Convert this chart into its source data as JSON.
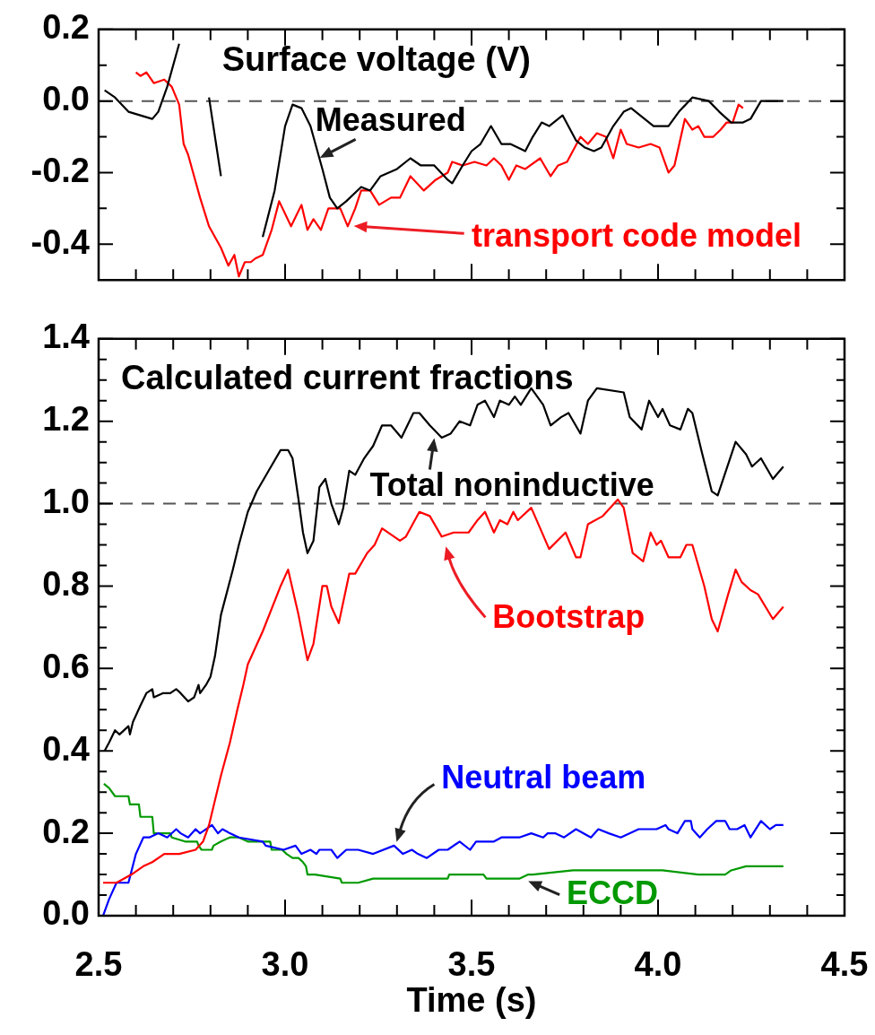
{
  "chart_data": [
    {
      "type": "line",
      "title": "Surface voltage (V)",
      "xlim": [
        2.5,
        4.5
      ],
      "ylim": [
        -0.5,
        0.2
      ],
      "xticks": [
        2.5,
        {
          "value": 2.6,
          "label": null
        },
        {
          "value": 2.7,
          "label": null
        },
        {
          "value": 2.8,
          "label": null
        },
        {
          "value": 2.9,
          "label": null
        },
        3,
        {
          "value": 3.1,
          "label": null
        },
        {
          "value": 3.2,
          "label": null
        },
        {
          "value": 3.3,
          "label": null
        },
        {
          "value": 3.4,
          "label": null
        },
        3.5,
        {
          "value": 3.6,
          "label": null
        },
        {
          "value": 3.7,
          "label": null
        },
        {
          "value": 3.8,
          "label": null
        },
        {
          "value": 3.9,
          "label": null
        },
        4,
        {
          "value": 4.1,
          "label": null
        },
        {
          "value": 4.2,
          "label": null
        },
        {
          "value": 4.3,
          "label": null
        },
        {
          "value": 4.4,
          "label": null
        },
        4.5
      ],
      "yticks": [
        0.2,
        {
          "value": 0.1,
          "label": null
        },
        {
          "value": 0,
          "label": "0.0"
        },
        {
          "value": -0.1,
          "label": null
        },
        -0.2,
        {
          "value": -0.3,
          "label": null
        },
        -0.4
      ],
      "tick_labels": "y",
      "grid": false,
      "legend": false,
      "ref_lines": [
        {
          "axis": "y",
          "value": 0,
          "color": "#555555",
          "line_style": "dashed"
        }
      ],
      "series": [
        {
          "name": "Measured",
          "color": "#000000",
          "x": [
            2.516,
            2.544,
            2.58,
            2.612,
            2.644,
            2.66,
            2.684,
            2.716,
            2.726,
            2.748,
            2.77,
            2.796,
            2.828,
            2.864,
            2.886,
            2.908,
            2.94,
            2.972,
            3.0,
            3.02,
            3.044,
            3.068,
            3.1,
            3.12,
            3.14,
            3.164,
            3.204,
            3.228,
            3.256,
            3.3,
            3.336,
            3.364,
            3.4,
            3.436,
            3.448,
            3.476,
            3.5,
            3.524,
            3.552,
            3.58,
            3.604,
            3.644,
            3.664,
            3.688,
            3.708,
            3.744,
            3.78,
            3.804,
            3.828,
            3.848,
            3.88,
            3.908,
            3.928,
            3.964,
            3.988,
            4.028,
            4.056,
            4.092,
            4.136,
            4.164,
            4.196,
            4.228,
            4.248,
            4.276,
            4.3,
            4.336
          ],
          "values": [
            0.03,
            0.01,
            -0.03,
            -0.04,
            -0.05,
            -0.03,
            0.04,
            0.16,
            null,
            null,
            null,
            0.01,
            -0.21,
            null,
            null,
            null,
            -0.38,
            -0.25,
            -0.07,
            -0.01,
            -0.02,
            -0.07,
            -0.19,
            -0.27,
            -0.3,
            -0.28,
            -0.24,
            -0.25,
            -0.21,
            -0.19,
            -0.16,
            -0.18,
            -0.18,
            -0.22,
            -0.23,
            -0.18,
            -0.14,
            -0.12,
            -0.07,
            -0.12,
            -0.12,
            -0.14,
            -0.1,
            -0.06,
            -0.07,
            -0.04,
            -0.11,
            -0.13,
            -0.14,
            -0.13,
            -0.07,
            -0.03,
            -0.02,
            -0.05,
            -0.07,
            -0.07,
            -0.03,
            0.01,
            0.0,
            -0.03,
            -0.06,
            -0.06,
            -0.05,
            0.0,
            0.0,
            0.0
          ]
        },
        {
          "name": "transport code model",
          "color": "#ff0000",
          "x": [
            2.6,
            2.612,
            2.628,
            2.648,
            2.676,
            2.696,
            2.716,
            2.728,
            2.74,
            2.756,
            2.772,
            2.796,
            2.828,
            2.848,
            2.864,
            2.876,
            2.892,
            2.908,
            2.92,
            2.94,
            2.964,
            2.984,
            3.016,
            3.044,
            3.06,
            3.076,
            3.096,
            3.116,
            3.148,
            3.168,
            3.188,
            3.204,
            3.228,
            3.252,
            3.284,
            3.308,
            3.336,
            3.372,
            3.404,
            3.436,
            3.448,
            3.476,
            3.508,
            3.54,
            3.56,
            3.58,
            3.6,
            3.62,
            3.644,
            3.684,
            3.712,
            3.732,
            3.756,
            3.792,
            3.812,
            3.836,
            3.86,
            3.88,
            3.9,
            3.916,
            3.948,
            3.98,
            4.004,
            4.028,
            4.044,
            4.072,
            4.092,
            4.108,
            4.124,
            4.148,
            4.168,
            4.184,
            4.2,
            4.216,
            4.228
          ],
          "values": [
            0.08,
            0.07,
            0.08,
            0.05,
            0.06,
            0.04,
            -0.01,
            -0.12,
            -0.15,
            -0.21,
            -0.27,
            -0.35,
            -0.41,
            -0.46,
            -0.43,
            -0.49,
            -0.45,
            -0.45,
            -0.44,
            -0.43,
            -0.36,
            -0.28,
            -0.35,
            -0.29,
            -0.36,
            -0.33,
            -0.36,
            -0.3,
            -0.3,
            -0.35,
            -0.3,
            -0.25,
            -0.25,
            -0.29,
            -0.27,
            -0.27,
            -0.21,
            -0.25,
            -0.22,
            -0.2,
            -0.17,
            -0.18,
            -0.17,
            -0.18,
            -0.16,
            -0.18,
            -0.22,
            -0.18,
            -0.19,
            -0.16,
            -0.21,
            -0.18,
            -0.17,
            -0.1,
            -0.12,
            -0.09,
            -0.1,
            -0.16,
            -0.08,
            -0.12,
            -0.13,
            -0.12,
            -0.13,
            -0.2,
            -0.18,
            -0.05,
            -0.08,
            -0.07,
            -0.1,
            -0.1,
            -0.08,
            -0.06,
            -0.06,
            -0.01,
            -0.02
          ]
        }
      ]
    },
    {
      "type": "line",
      "title": "Calculated current fractions",
      "xlabel": "Time (s)",
      "xlim": [
        2.5,
        4.5
      ],
      "ylim": [
        0,
        1.4
      ],
      "xticks": [
        2.5,
        {
          "value": 2.6,
          "label": null
        },
        {
          "value": 2.7,
          "label": null
        },
        {
          "value": 2.8,
          "label": null
        },
        {
          "value": 2.9,
          "label": null
        },
        {
          "value": 3,
          "label": "3.0"
        },
        {
          "value": 3.1,
          "label": null
        },
        {
          "value": 3.2,
          "label": null
        },
        {
          "value": 3.3,
          "label": null
        },
        {
          "value": 3.4,
          "label": null
        },
        3.5,
        {
          "value": 3.6,
          "label": null
        },
        {
          "value": 3.7,
          "label": null
        },
        {
          "value": 3.8,
          "label": null
        },
        {
          "value": 3.9,
          "label": null
        },
        {
          "value": 4,
          "label": "4.0"
        },
        {
          "value": 4.1,
          "label": null
        },
        {
          "value": 4.2,
          "label": null
        },
        {
          "value": 4.3,
          "label": null
        },
        {
          "value": 4.4,
          "label": null
        },
        4.5
      ],
      "yticks": [
        {
          "value": 0,
          "label": "0.0"
        },
        {
          "value": 0.05,
          "label": null
        },
        {
          "value": 0.1,
          "label": null
        },
        {
          "value": 0.15,
          "label": null
        },
        0.2,
        {
          "value": 0.25,
          "label": null
        },
        {
          "value": 0.3,
          "label": null
        },
        {
          "value": 0.35,
          "label": null
        },
        0.4,
        {
          "value": 0.45,
          "label": null
        },
        {
          "value": 0.5,
          "label": null
        },
        {
          "value": 0.55,
          "label": null
        },
        0.6,
        {
          "value": 0.65,
          "label": null
        },
        {
          "value": 0.7,
          "label": null
        },
        {
          "value": 0.75,
          "label": null
        },
        0.8,
        {
          "value": 0.85,
          "label": null
        },
        {
          "value": 0.9,
          "label": null
        },
        {
          "value": 0.95,
          "label": null
        },
        {
          "value": 1,
          "label": "1.0"
        },
        {
          "value": 1.05,
          "label": null
        },
        {
          "value": 1.1,
          "label": null
        },
        {
          "value": 1.15,
          "label": null
        },
        1.2,
        {
          "value": 1.25,
          "label": null
        },
        {
          "value": 1.3,
          "label": null
        },
        {
          "value": 1.35,
          "label": null
        },
        1.4
      ],
      "grid": false,
      "legend": false,
      "ref_lines": [
        {
          "axis": "y",
          "value": 1,
          "color": "#555555",
          "line_style": "dashed"
        }
      ],
      "series": [
        {
          "name": "Total noninductive",
          "color": "#000000",
          "x": [
            2.516,
            2.528,
            2.544,
            2.556,
            2.58,
            2.584,
            2.592,
            2.612,
            2.628,
            2.644,
            2.648,
            2.672,
            2.692,
            2.708,
            2.72,
            2.74,
            2.756,
            2.768,
            2.772,
            2.788,
            2.8,
            2.812,
            2.828,
            2.86,
            2.876,
            2.9,
            2.924,
            2.956,
            2.988,
            3.008,
            3.02,
            3.036,
            3.048,
            3.06,
            3.076,
            3.092,
            3.108,
            3.124,
            3.144,
            3.156,
            3.172,
            3.188,
            3.212,
            3.236,
            3.26,
            3.284,
            3.312,
            3.344,
            3.36,
            3.388,
            3.42,
            3.444,
            3.468,
            3.496,
            3.516,
            3.536,
            3.56,
            3.576,
            3.6,
            3.616,
            3.632,
            3.66,
            3.692,
            3.712,
            3.74,
            3.76,
            3.792,
            3.812,
            3.836,
            3.908,
            3.924,
            3.956,
            3.976,
            4.0,
            4.012,
            4.032,
            4.06,
            4.08,
            4.092,
            4.116,
            4.144,
            4.16,
            4.208,
            4.236,
            4.252,
            4.276,
            4.308,
            4.336
          ],
          "values": [
            0.4,
            0.42,
            0.45,
            0.44,
            0.46,
            0.44,
            0.47,
            0.51,
            0.54,
            0.55,
            0.53,
            0.54,
            0.54,
            0.55,
            0.54,
            0.52,
            0.53,
            0.56,
            0.54,
            0.56,
            0.58,
            0.63,
            0.73,
            0.84,
            0.9,
            0.98,
            1.03,
            1.08,
            1.13,
            1.13,
            1.11,
            1.01,
            0.93,
            0.88,
            0.91,
            1.04,
            1.06,
            1.0,
            0.95,
            0.99,
            1.08,
            1.07,
            1.11,
            1.14,
            1.19,
            1.19,
            1.16,
            1.22,
            1.22,
            1.19,
            1.16,
            1.17,
            1.2,
            1.19,
            1.24,
            1.25,
            1.21,
            1.25,
            1.24,
            1.26,
            1.24,
            1.28,
            1.24,
            1.19,
            1.21,
            1.22,
            1.17,
            1.25,
            1.28,
            1.27,
            1.21,
            1.18,
            1.25,
            1.21,
            1.23,
            1.19,
            1.18,
            1.23,
            1.22,
            1.13,
            1.03,
            1.02,
            1.15,
            1.12,
            1.09,
            1.11,
            1.06,
            1.09
          ]
        },
        {
          "name": "Bootstrap",
          "color": "#ff0000",
          "x": [
            2.512,
            2.524,
            2.548,
            2.588,
            2.62,
            2.644,
            2.676,
            2.716,
            2.76,
            2.78,
            2.796,
            2.812,
            2.828,
            2.852,
            2.872,
            2.888,
            2.9,
            2.94,
            2.988,
            3.008,
            3.036,
            3.06,
            3.076,
            3.1,
            3.112,
            3.124,
            3.144,
            3.172,
            3.188,
            3.22,
            3.24,
            3.26,
            3.308,
            3.324,
            3.36,
            3.388,
            3.42,
            3.452,
            3.492,
            3.516,
            3.536,
            3.56,
            3.576,
            3.596,
            3.612,
            3.624,
            3.66,
            3.708,
            3.752,
            3.78,
            3.792,
            3.812,
            3.852,
            3.892,
            3.908,
            3.932,
            3.96,
            3.98,
            3.996,
            4.008,
            4.028,
            4.06,
            4.076,
            4.092,
            4.124,
            4.144,
            4.16,
            4.188,
            4.208,
            4.224,
            4.248,
            4.268,
            4.308,
            4.336
          ],
          "values": [
            0.08,
            0.08,
            0.08,
            0.1,
            0.12,
            0.13,
            0.15,
            0.15,
            0.16,
            0.18,
            0.22,
            0.28,
            0.34,
            0.42,
            0.5,
            0.56,
            0.61,
            0.69,
            0.8,
            0.84,
            0.73,
            0.62,
            0.66,
            0.8,
            0.8,
            0.75,
            0.71,
            0.83,
            0.83,
            0.88,
            0.9,
            0.94,
            0.91,
            0.92,
            0.98,
            0.97,
            0.92,
            0.93,
            0.93,
            0.96,
            0.98,
            0.93,
            0.96,
            0.95,
            0.98,
            0.96,
            0.99,
            0.89,
            0.93,
            0.87,
            0.87,
            0.95,
            0.97,
            1.01,
            0.99,
            0.88,
            0.86,
            0.93,
            0.9,
            0.91,
            0.87,
            0.87,
            0.9,
            0.9,
            0.8,
            0.72,
            0.69,
            0.78,
            0.84,
            0.81,
            0.79,
            0.78,
            0.72,
            0.75
          ]
        },
        {
          "name": "Neutral beam",
          "color": "#0000ff",
          "x": [
            2.512,
            2.528,
            2.548,
            2.58,
            2.6,
            2.62,
            2.636,
            2.66,
            2.684,
            2.708,
            2.72,
            2.74,
            2.76,
            2.772,
            2.804,
            2.82,
            2.832,
            2.852,
            2.876,
            2.94,
            2.948,
            2.996,
            3.028,
            3.044,
            3.068,
            3.084,
            3.092,
            3.124,
            3.14,
            3.164,
            3.196,
            3.236,
            3.292,
            3.316,
            3.34,
            3.356,
            3.38,
            3.412,
            3.436,
            3.468,
            3.496,
            3.512,
            3.548,
            3.56,
            3.58,
            3.6,
            3.628,
            3.66,
            3.692,
            3.704,
            3.724,
            3.748,
            3.78,
            3.82,
            3.84,
            3.868,
            3.9,
            3.948,
            3.996,
            4.02,
            4.028,
            4.052,
            4.072,
            4.088,
            4.092,
            4.112,
            4.132,
            4.156,
            4.18,
            4.192,
            4.212,
            4.232,
            4.248,
            4.276,
            4.3,
            4.316,
            4.336
          ],
          "values": [
            0.0,
            0.04,
            0.08,
            0.08,
            0.15,
            0.19,
            0.19,
            0.2,
            0.19,
            0.21,
            0.2,
            0.19,
            0.21,
            0.2,
            0.22,
            0.2,
            0.21,
            0.2,
            0.19,
            0.18,
            0.17,
            0.16,
            0.17,
            0.15,
            0.16,
            0.15,
            0.16,
            0.16,
            0.14,
            0.16,
            0.16,
            0.15,
            0.17,
            0.15,
            0.16,
            0.15,
            0.14,
            0.16,
            0.16,
            0.18,
            0.16,
            0.18,
            0.18,
            0.18,
            0.19,
            0.19,
            0.19,
            0.2,
            0.19,
            0.2,
            0.2,
            0.19,
            0.21,
            0.19,
            0.21,
            0.2,
            0.19,
            0.21,
            0.21,
            0.22,
            0.21,
            0.2,
            0.23,
            0.23,
            0.21,
            0.19,
            0.21,
            0.23,
            0.23,
            0.21,
            0.21,
            0.22,
            0.19,
            0.23,
            0.21,
            0.22,
            0.22
          ]
        },
        {
          "name": "ECCD",
          "color": "#009900",
          "x": [
            2.514,
            2.528,
            2.544,
            2.58,
            2.584,
            2.608,
            2.612,
            2.644,
            2.648,
            2.692,
            2.696,
            2.732,
            2.764,
            2.768,
            2.776,
            2.804,
            2.808,
            2.828,
            2.852,
            2.876,
            2.9,
            2.96,
            2.964,
            2.992,
            3.004,
            3.02,
            3.036,
            3.048,
            3.056,
            3.06,
            3.08,
            3.148,
            3.152,
            3.196,
            3.236,
            3.436,
            3.44,
            3.532,
            3.54,
            3.596,
            3.628,
            3.652,
            3.664,
            3.772,
            3.908,
            4.012,
            4.108,
            4.18,
            4.196,
            4.236,
            4.24,
            4.276,
            4.28,
            4.336
          ],
          "values": [
            0.32,
            0.31,
            0.29,
            0.29,
            0.27,
            0.27,
            0.24,
            0.24,
            0.2,
            0.2,
            0.19,
            0.18,
            0.18,
            0.17,
            0.16,
            0.16,
            0.17,
            0.18,
            0.19,
            0.19,
            0.18,
            0.18,
            0.16,
            0.16,
            0.15,
            0.14,
            0.14,
            0.13,
            0.12,
            0.1,
            0.1,
            0.09,
            0.08,
            0.08,
            0.09,
            0.09,
            0.1,
            0.1,
            0.09,
            0.09,
            0.09,
            0.1,
            0.1,
            0.11,
            0.11,
            0.11,
            0.1,
            0.1,
            0.11,
            0.12,
            0.12,
            0.12,
            0.12,
            0.12
          ]
        }
      ]
    }
  ]
}
